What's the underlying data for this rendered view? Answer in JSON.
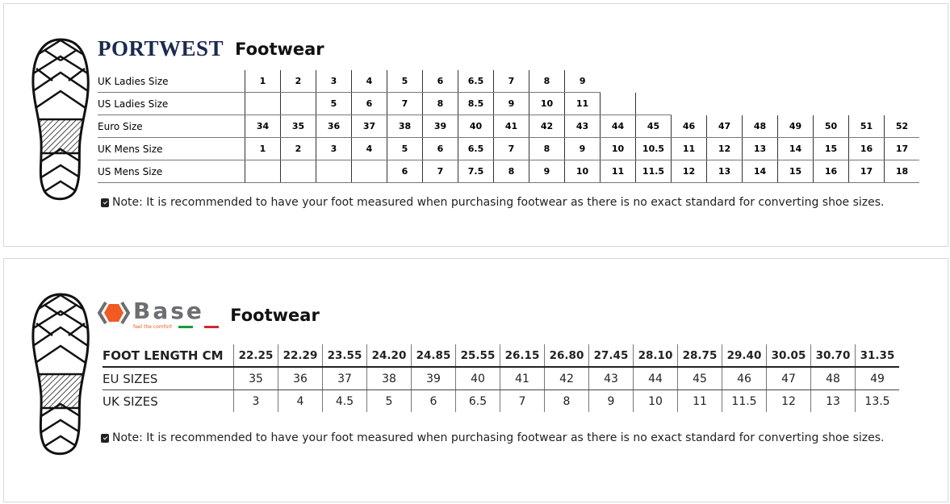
{
  "portwest": {
    "logo_text": "PORTWEST",
    "title": "Footwear",
    "rows": [
      {
        "label": "UK Ladies Size",
        "cells": [
          "1",
          "2",
          "3",
          "4",
          "5",
          "6",
          "6.5",
          "7",
          "8",
          "9",
          "",
          "",
          "",
          "",
          "",
          "",
          "",
          "",
          ""
        ]
      },
      {
        "label": "US Ladies Size",
        "cells": [
          "",
          "",
          "5",
          "6",
          "7",
          "8",
          "8.5",
          "9",
          "10",
          "11",
          "",
          "",
          "",
          "",
          "",
          "",
          "",
          "",
          ""
        ]
      },
      {
        "label": "Euro Size",
        "cells": [
          "34",
          "35",
          "36",
          "37",
          "38",
          "39",
          "40",
          "41",
          "42",
          "43",
          "44",
          "45",
          "46",
          "47",
          "48",
          "49",
          "50",
          "51",
          "52"
        ]
      },
      {
        "label": "UK Mens Size",
        "cells": [
          "1",
          "2",
          "3",
          "4",
          "5",
          "6",
          "6.5",
          "7",
          "8",
          "9",
          "10",
          "10.5",
          "11",
          "12",
          "13",
          "14",
          "15",
          "16",
          "17"
        ]
      },
      {
        "label": "US Mens Size",
        "cells": [
          "",
          "",
          "",
          "",
          "6",
          "7",
          "7.5",
          "8",
          "9",
          "10",
          "11",
          "11.5",
          "12",
          "13",
          "14",
          "15",
          "16",
          "17",
          "18"
        ]
      }
    ],
    "note": "Note: It is recommended to have your foot measured when purchasing footwear as there is no exact standard for converting shoe sizes."
  },
  "base": {
    "logo_text": "Base",
    "tagline": "feel the comfort",
    "title": "Footwear",
    "colors": {
      "orange": "#f15a22",
      "grey": "#6d6e71",
      "green": "#1a9a3a",
      "red": "#d7262d"
    },
    "rows": [
      {
        "label": "FOOT LENGTH CM",
        "cells": [
          "22.25",
          "22.29",
          "23.55",
          "24.20",
          "24.85",
          "25.55",
          "26.15",
          "26.80",
          "27.45",
          "28.10",
          "28.75",
          "29.40",
          "30.05",
          "30.70",
          "31.35"
        ]
      },
      {
        "label": "EU SIZES",
        "cells": [
          "35",
          "36",
          "37",
          "38",
          "39",
          "40",
          "41",
          "42",
          "43",
          "44",
          "45",
          "46",
          "47",
          "48",
          "49"
        ]
      },
      {
        "label": "UK SIZES",
        "cells": [
          "3",
          "4",
          "4.5",
          "5",
          "6",
          "6.5",
          "7",
          "8",
          "9",
          "10",
          "11",
          "11.5",
          "12",
          "13",
          "13.5"
        ]
      }
    ],
    "note": "Note: It is recommended to have your foot measured when purchasing footwear as there is no exact standard for converting shoe sizes."
  }
}
